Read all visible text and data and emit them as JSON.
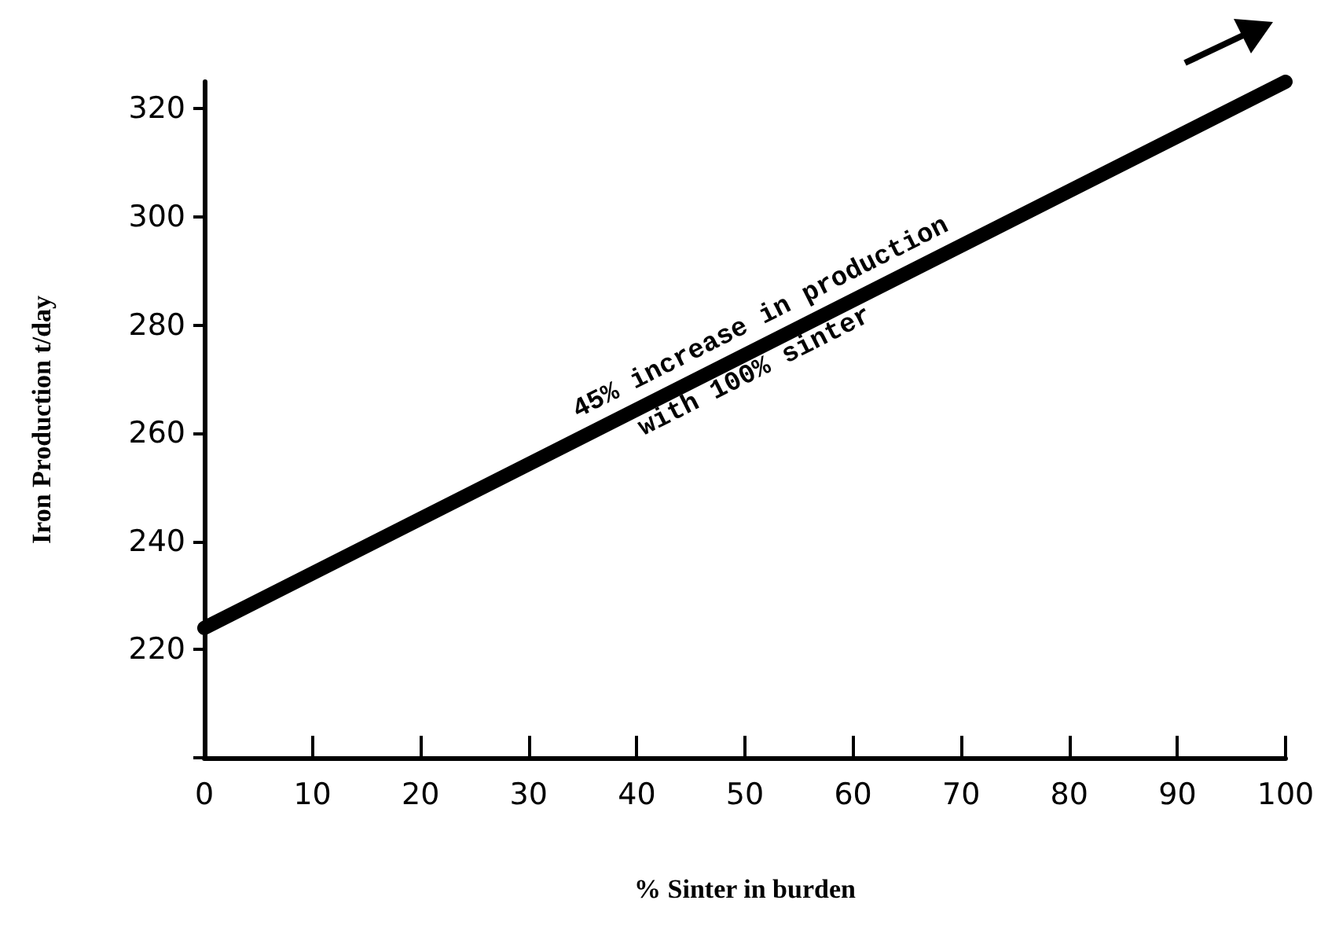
{
  "chart_data": {
    "type": "line",
    "xlabel": "% Sinter in burden",
    "ylabel": "Iron Production t/day",
    "x": [
      0,
      100
    ],
    "series": [
      {
        "color": "#000000",
        "values": [
          224,
          325
        ]
      }
    ],
    "xlim": [
      0,
      100
    ],
    "xticks": [
      0,
      10,
      20,
      30,
      40,
      50,
      60,
      70,
      80,
      90,
      100
    ],
    "ylim": [
      200,
      325
    ],
    "yticks": [
      {
        "value": 200,
        "label": null
      },
      220,
      240,
      260,
      280,
      300,
      320
    ],
    "annotations": [
      "45% increase in production",
      "with 100% sinter"
    ],
    "grid": false,
    "line_style": "solid"
  }
}
